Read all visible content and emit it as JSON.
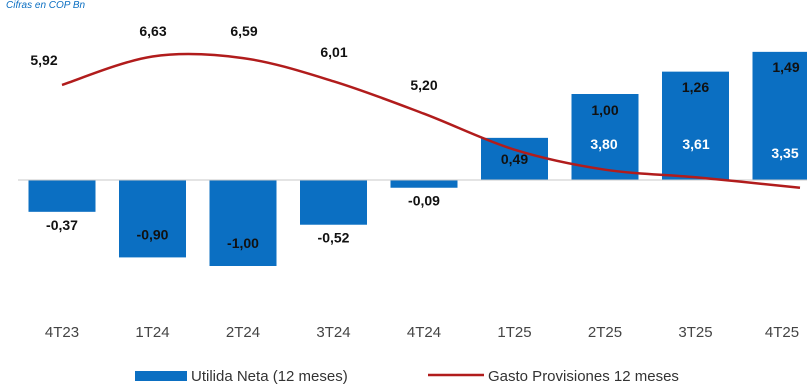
{
  "chart_data": {
    "type": "bar",
    "subtitle": "Cifras en COP Bn",
    "categories": [
      "4T23",
      "1T24",
      "2T24",
      "3T24",
      "4T24",
      "1T25",
      "2T25",
      "3T25",
      "4T25"
    ],
    "series": [
      {
        "name": "Utilida Neta (12 meses)",
        "type": "bar",
        "color": "#0b6fc2",
        "values": [
          -0.37,
          -0.9,
          -1.0,
          -0.52,
          -0.09,
          0.49,
          1.0,
          1.26,
          1.49
        ],
        "labels": [
          "-0,37",
          "-0,90",
          "-1,00",
          "-0,52",
          "-0,09",
          "0,49",
          "1,00",
          "1,26",
          "1,49"
        ]
      },
      {
        "name": "Gasto Provisiones 12 meses",
        "type": "line",
        "color": "#b11c1c",
        "values": [
          5.92,
          6.63,
          6.59,
          6.01,
          5.2,
          4.3,
          3.8,
          3.61,
          3.35
        ],
        "labels": [
          "5,92",
          "6,63",
          "6,59",
          "6,01",
          "5,20",
          "",
          "3,80",
          "3,61",
          "3,35"
        ]
      }
    ],
    "legend_position": "bottom",
    "grid": false
  }
}
